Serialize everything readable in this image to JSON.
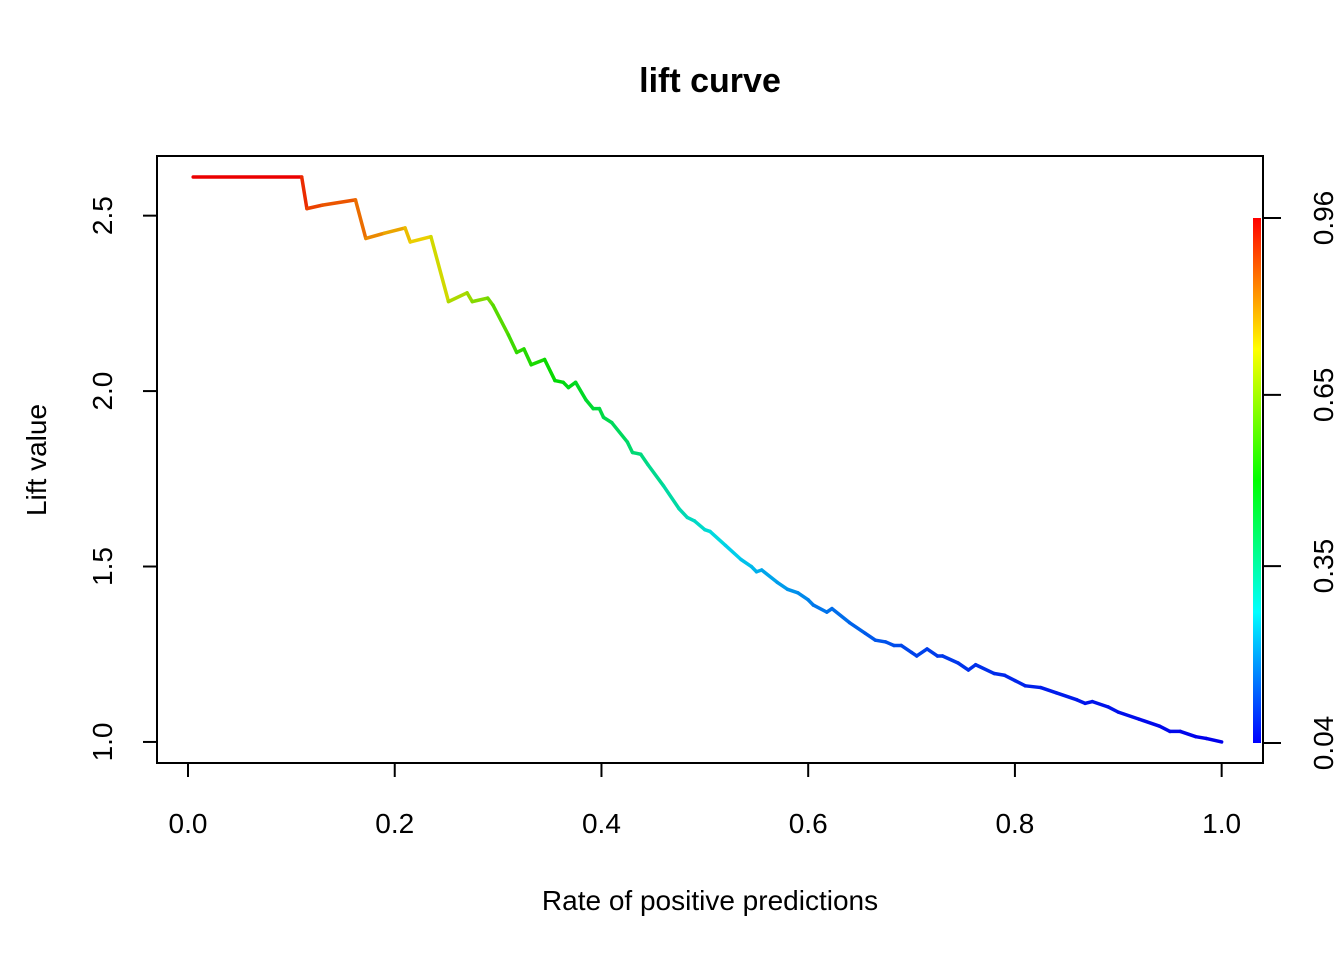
{
  "chart_data": {
    "type": "line",
    "title": "lift curve",
    "xlabel": "Rate of positive predictions",
    "ylabel": "Lift value",
    "xlim": [
      -0.03,
      1.04
    ],
    "ylim": [
      0.94,
      2.67
    ],
    "x_ticks": [
      0.0,
      0.2,
      0.4,
      0.6,
      0.8,
      1.0
    ],
    "x_tick_labels": [
      "0.0",
      "0.2",
      "0.4",
      "0.6",
      "0.8",
      "1.0"
    ],
    "y_ticks": [
      1.0,
      1.5,
      2.0,
      2.5
    ],
    "y_tick_labels": [
      "1.0",
      "1.5",
      "2.0",
      "2.5"
    ],
    "colorbar": {
      "ticks": [
        0.04,
        0.35,
        0.65,
        0.96
      ],
      "tick_labels": [
        "0.04",
        "0.35",
        "0.65",
        "0.96"
      ],
      "colors": [
        "#0000ff",
        "#00ffff",
        "#00ff00",
        "#ffff00",
        "#ff0000"
      ]
    },
    "grid": false,
    "legend": "none",
    "series": [
      {
        "points": [
          [
            0.005,
            2.61,
            0.99
          ],
          [
            0.11,
            2.61,
            0.93
          ],
          [
            0.115,
            2.52,
            0.9
          ],
          [
            0.13,
            2.53,
            0.88
          ],
          [
            0.162,
            2.545,
            0.86
          ],
          [
            0.172,
            2.435,
            0.83
          ],
          [
            0.19,
            2.45,
            0.8
          ],
          [
            0.21,
            2.465,
            0.77
          ],
          [
            0.215,
            2.425,
            0.75
          ],
          [
            0.235,
            2.44,
            0.73
          ],
          [
            0.252,
            2.255,
            0.68
          ],
          [
            0.27,
            2.28,
            0.66
          ],
          [
            0.275,
            2.255,
            0.64
          ],
          [
            0.29,
            2.265,
            0.62
          ],
          [
            0.295,
            2.245,
            0.6
          ],
          [
            0.31,
            2.16,
            0.57
          ],
          [
            0.318,
            2.11,
            0.55
          ],
          [
            0.325,
            2.12,
            0.54
          ],
          [
            0.332,
            2.075,
            0.53
          ],
          [
            0.345,
            2.09,
            0.52
          ],
          [
            0.355,
            2.03,
            0.5
          ],
          [
            0.363,
            2.025,
            0.49
          ],
          [
            0.368,
            2.01,
            0.48
          ],
          [
            0.375,
            2.025,
            0.47
          ],
          [
            0.385,
            1.975,
            0.46
          ],
          [
            0.392,
            1.95,
            0.45
          ],
          [
            0.398,
            1.95,
            0.44
          ],
          [
            0.402,
            1.925,
            0.43
          ],
          [
            0.41,
            1.91,
            0.42
          ],
          [
            0.425,
            1.855,
            0.4
          ],
          [
            0.43,
            1.825,
            0.39
          ],
          [
            0.438,
            1.82,
            0.38
          ],
          [
            0.445,
            1.79,
            0.37
          ],
          [
            0.46,
            1.73,
            0.35
          ],
          [
            0.475,
            1.665,
            0.33
          ],
          [
            0.483,
            1.64,
            0.32
          ],
          [
            0.49,
            1.63,
            0.31
          ],
          [
            0.5,
            1.605,
            0.3
          ],
          [
            0.505,
            1.6,
            0.29
          ],
          [
            0.52,
            1.56,
            0.27
          ],
          [
            0.535,
            1.52,
            0.25
          ],
          [
            0.545,
            1.5,
            0.24
          ],
          [
            0.55,
            1.485,
            0.23
          ],
          [
            0.555,
            1.49,
            0.22
          ],
          [
            0.57,
            1.455,
            0.21
          ],
          [
            0.58,
            1.435,
            0.2
          ],
          [
            0.59,
            1.425,
            0.19
          ],
          [
            0.6,
            1.405,
            0.18
          ],
          [
            0.605,
            1.39,
            0.17
          ],
          [
            0.618,
            1.37,
            0.16
          ],
          [
            0.623,
            1.38,
            0.16
          ],
          [
            0.64,
            1.34,
            0.15
          ],
          [
            0.655,
            1.31,
            0.14
          ],
          [
            0.665,
            1.29,
            0.13
          ],
          [
            0.675,
            1.285,
            0.13
          ],
          [
            0.683,
            1.275,
            0.12
          ],
          [
            0.69,
            1.275,
            0.12
          ],
          [
            0.7,
            1.255,
            0.11
          ],
          [
            0.705,
            1.245,
            0.11
          ],
          [
            0.715,
            1.265,
            0.11
          ],
          [
            0.725,
            1.245,
            0.1
          ],
          [
            0.73,
            1.245,
            0.1
          ],
          [
            0.745,
            1.225,
            0.1
          ],
          [
            0.755,
            1.205,
            0.09
          ],
          [
            0.762,
            1.22,
            0.09
          ],
          [
            0.78,
            1.195,
            0.09
          ],
          [
            0.79,
            1.19,
            0.08
          ],
          [
            0.8,
            1.175,
            0.08
          ],
          [
            0.81,
            1.16,
            0.08
          ],
          [
            0.825,
            1.155,
            0.07
          ],
          [
            0.84,
            1.14,
            0.07
          ],
          [
            0.86,
            1.12,
            0.07
          ],
          [
            0.868,
            1.11,
            0.06
          ],
          [
            0.875,
            1.115,
            0.06
          ],
          [
            0.89,
            1.1,
            0.06
          ],
          [
            0.9,
            1.085,
            0.06
          ],
          [
            0.92,
            1.065,
            0.05
          ],
          [
            0.94,
            1.045,
            0.05
          ],
          [
            0.95,
            1.03,
            0.05
          ],
          [
            0.96,
            1.03,
            0.05
          ],
          [
            0.975,
            1.015,
            0.04
          ],
          [
            0.985,
            1.01,
            0.04
          ],
          [
            1.0,
            1.0,
            0.04
          ]
        ]
      }
    ]
  }
}
